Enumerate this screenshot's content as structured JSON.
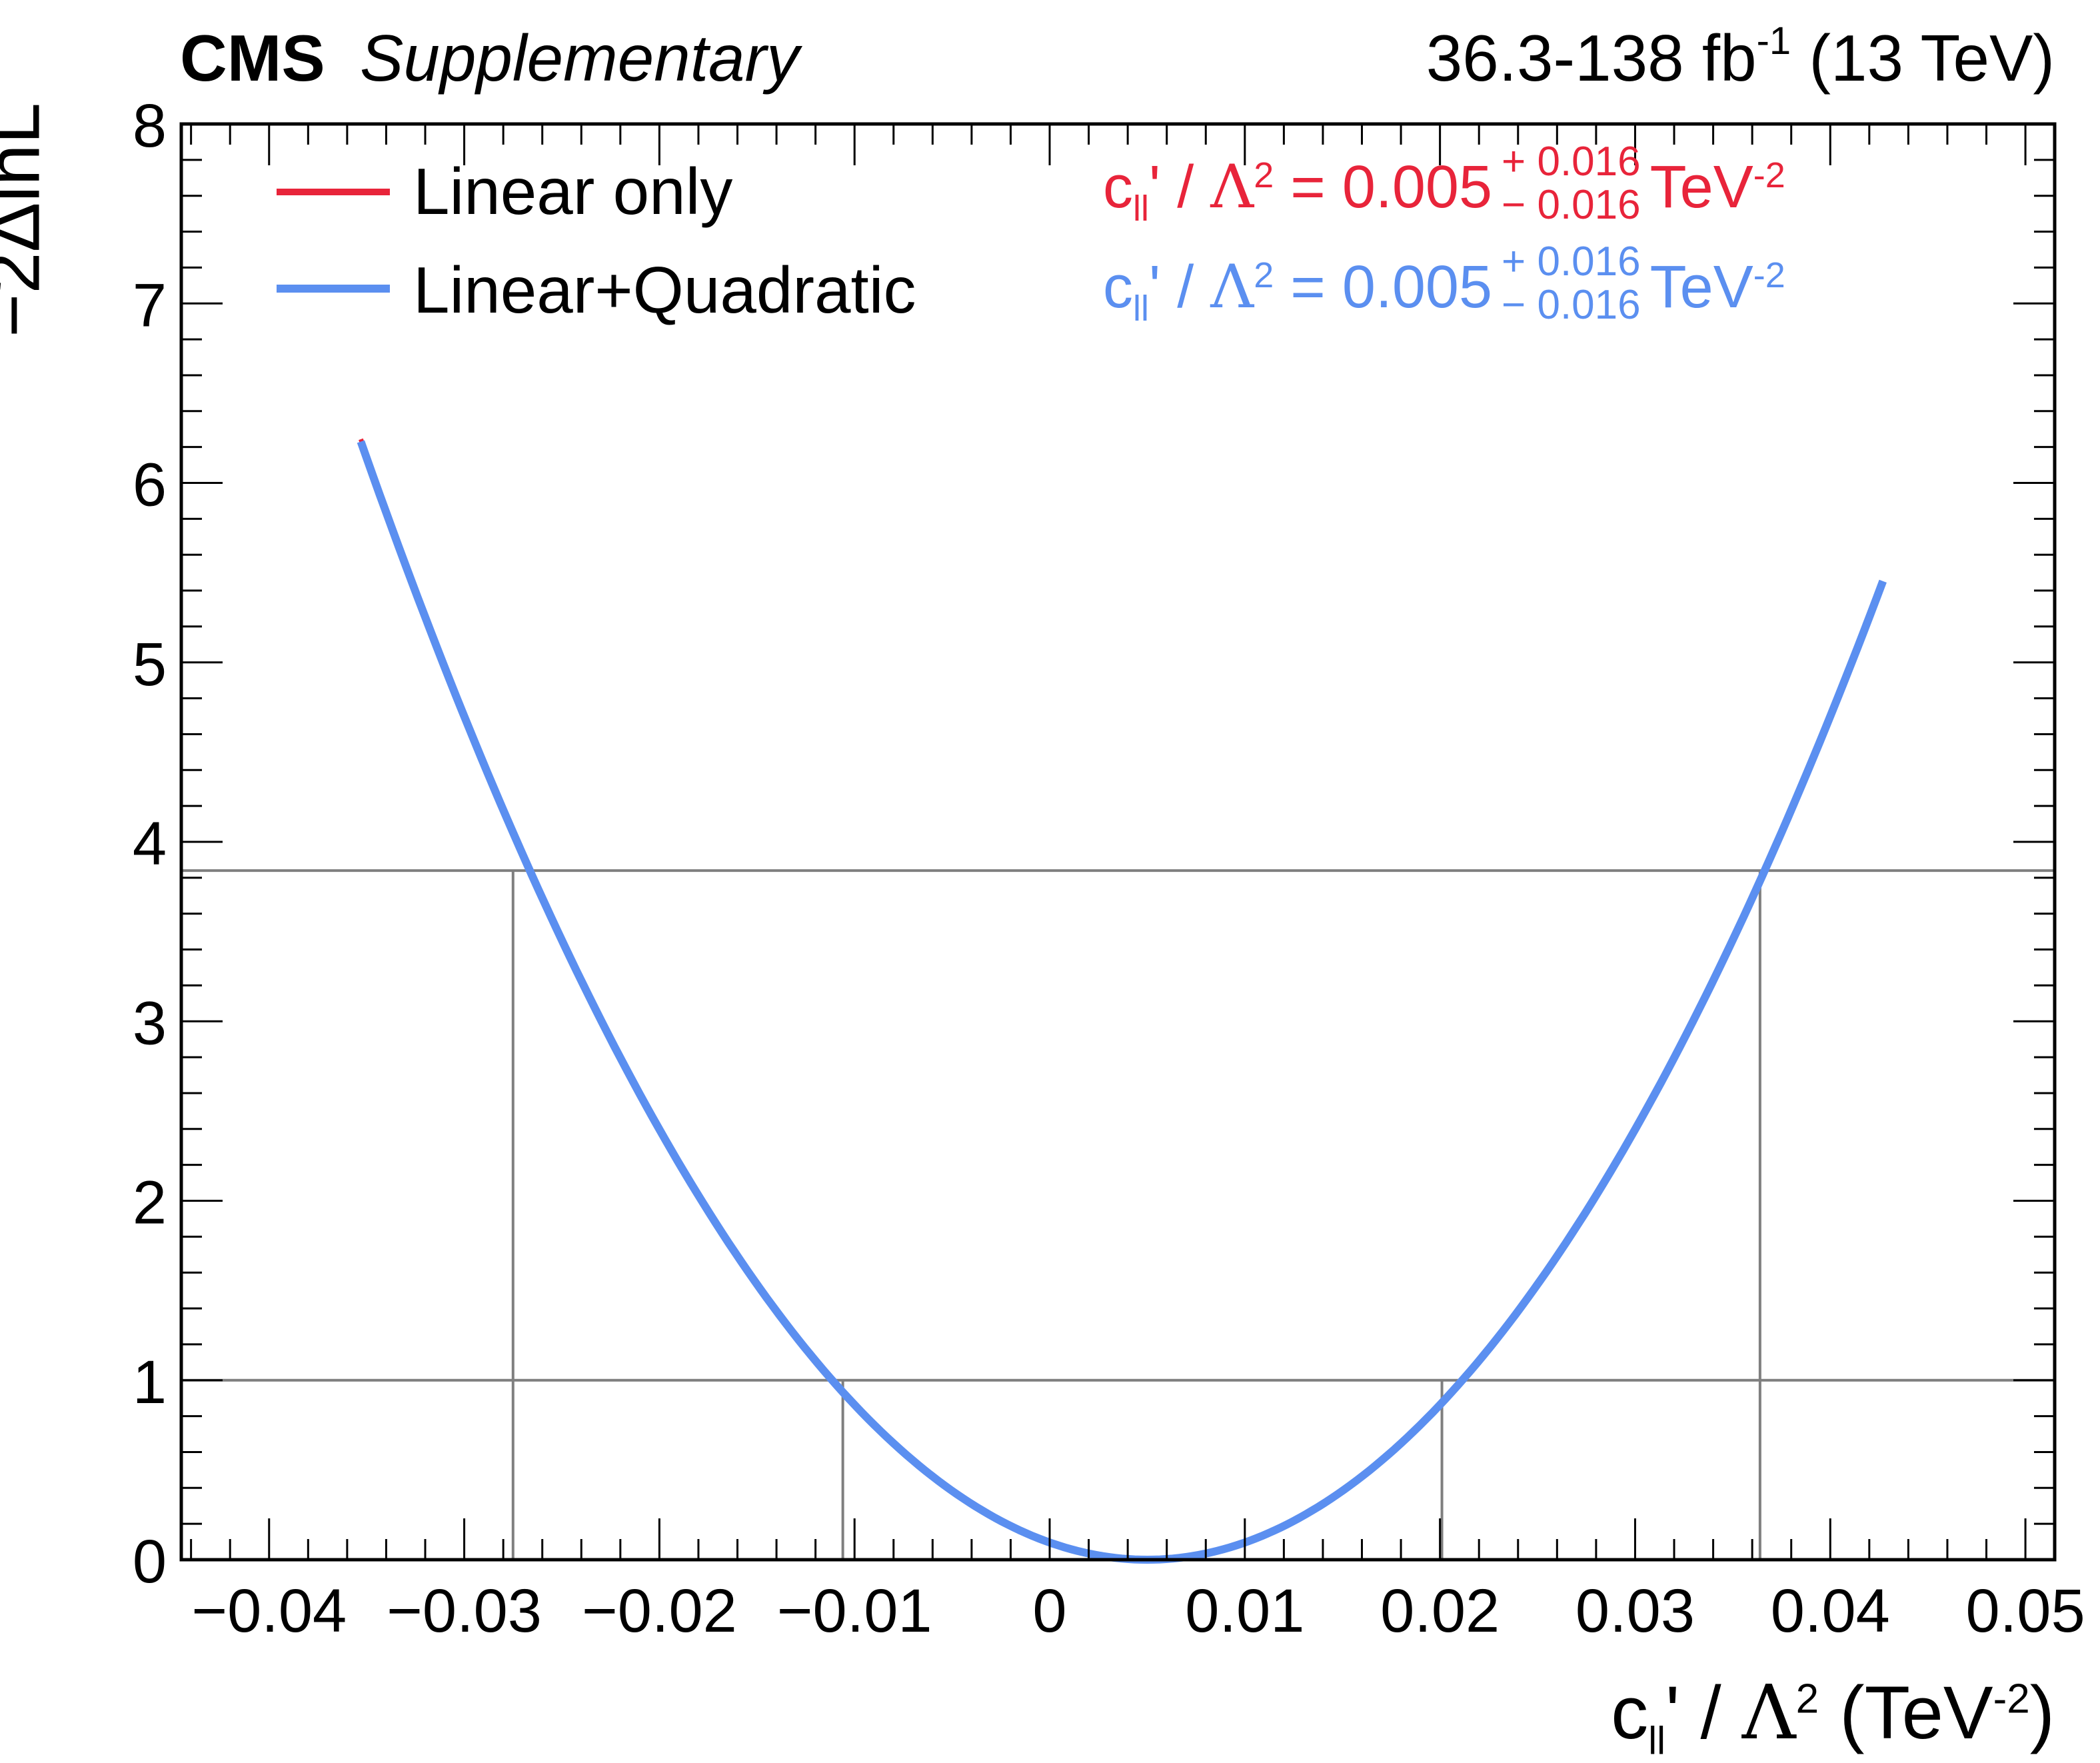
{
  "header": {
    "experiment": "CMS",
    "tag": "Supplementary",
    "lumi": "36.3-138 fb",
    "lumi_sup": "-1",
    "energy": "(13 TeV)"
  },
  "colors": {
    "linear": "#e8243a",
    "quadratic": "#5b8ff0",
    "reference": "#7f7f7f"
  },
  "results": [
    {
      "series": "Linear only",
      "prefix": "c",
      "sub": "ll",
      "mid": "' / ",
      "lambda": "Λ",
      "sup": "2",
      "eq": " = 0.005",
      "plus": "+ 0.016",
      "minus": "− 0.016",
      "unit": "TeV",
      "unit_sup": "-2"
    },
    {
      "series": "Linear+Quadratic",
      "prefix": "c",
      "sub": "ll",
      "mid": "' / ",
      "lambda": "Λ",
      "sup": "2",
      "eq": " = 0.005",
      "plus": "+ 0.016",
      "minus": "− 0.016",
      "unit": "TeV",
      "unit_sup": "-2"
    }
  ],
  "chart_data": {
    "type": "line",
    "xlabel": "c_ll' / Λ^2 (TeV^-2)",
    "xlabel_parts": {
      "c": "c",
      "sub": "ll",
      "mid": "' / ",
      "lambda": "Λ",
      "sup": "2",
      "unit": " (TeV",
      "unit_sup": "-2",
      "close": ")"
    },
    "ylabel": "−2ΔlnL",
    "xlim": [
      -0.0445,
      0.0515
    ],
    "ylim": [
      0,
      8
    ],
    "xticks": [
      -0.04,
      -0.03,
      -0.02,
      -0.01,
      0,
      0.01,
      0.02,
      0.03,
      0.04,
      0.05
    ],
    "xtick_labels": [
      "−0.04",
      "−0.03",
      "−0.02",
      "−0.01",
      "0",
      "0.01",
      "0.02",
      "0.03",
      "0.04",
      "0.05"
    ],
    "yticks": [
      0,
      1,
      2,
      3,
      4,
      5,
      6,
      7,
      8
    ],
    "ytick_labels": [
      "0",
      "1",
      "2",
      "3",
      "4",
      "5",
      "6",
      "7",
      "8"
    ],
    "legend_position": "top-left",
    "series": [
      {
        "name": "Linear only",
        "color": "#e8243a",
        "x": [
          -0.0353,
          -0.03,
          -0.0275,
          -0.02,
          -0.0106,
          0,
          0.005,
          0.01,
          0.0201,
          0.03,
          0.0364,
          0.0425
        ],
        "y": [
          5.9,
          4.75,
          3.84,
          2.19,
          0.99,
          0.1,
          0,
          0.1,
          0.99,
          2.55,
          3.84,
          5.9
        ]
      },
      {
        "name": "Linear+Quadratic",
        "color": "#5b8ff0",
        "x": [
          -0.0353,
          -0.03,
          -0.0275,
          -0.02,
          -0.0106,
          0,
          0.005,
          0.01,
          0.0201,
          0.03,
          0.0364,
          0.0427
        ],
        "y": [
          5.9,
          4.75,
          3.84,
          2.19,
          0.99,
          0.1,
          0,
          0.1,
          0.99,
          2.55,
          3.84,
          5.9
        ]
      }
    ],
    "reference_levels": [
      {
        "y": 1,
        "x_crossings": [
          -0.0106,
          0.0201
        ]
      },
      {
        "y": 3.84,
        "x_crossings": [
          -0.0275,
          0.0364
        ]
      }
    ]
  }
}
